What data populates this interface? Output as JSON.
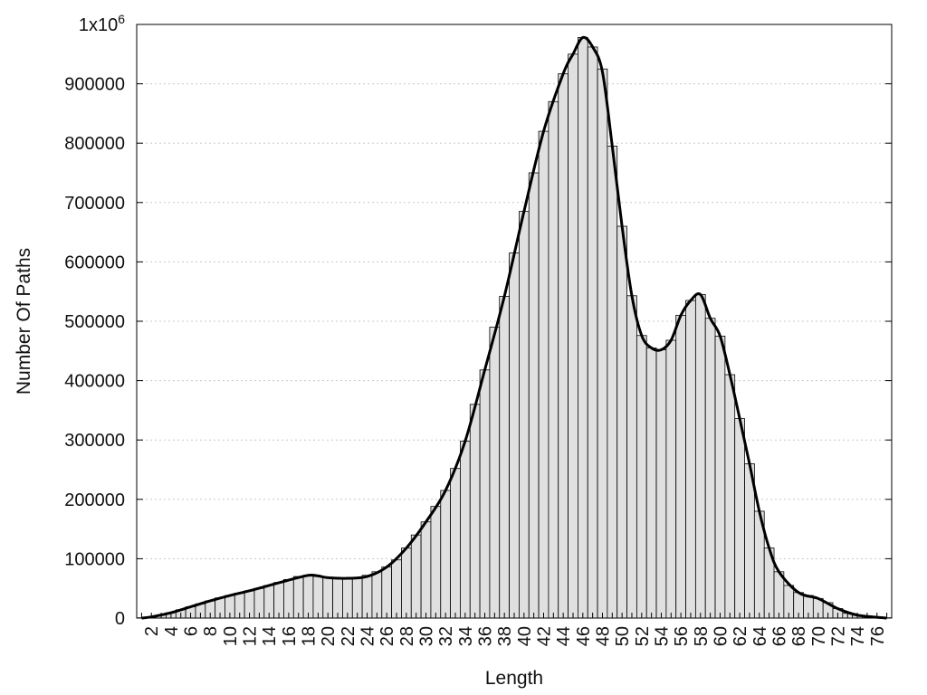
{
  "chart_data": {
    "type": "bar",
    "title": "",
    "xlabel": "Length",
    "ylabel": "Number Of Paths",
    "x": [
      1,
      2,
      3,
      4,
      5,
      6,
      7,
      8,
      9,
      10,
      11,
      12,
      13,
      14,
      15,
      16,
      17,
      18,
      19,
      20,
      21,
      22,
      23,
      24,
      25,
      26,
      27,
      28,
      29,
      30,
      31,
      32,
      33,
      34,
      35,
      36,
      37,
      38,
      39,
      40,
      41,
      42,
      43,
      44,
      45,
      46,
      47,
      48,
      49,
      50,
      51,
      52,
      53,
      54,
      55,
      56,
      57,
      58,
      59,
      60,
      61,
      62,
      63,
      64,
      65,
      66,
      67,
      68,
      69,
      70,
      71,
      72,
      73,
      74,
      75,
      76,
      77
    ],
    "values": [
      500,
      2000,
      5000,
      9000,
      14000,
      19000,
      24000,
      29000,
      34000,
      38000,
      42000,
      46000,
      50000,
      55000,
      60000,
      65000,
      70000,
      72000,
      70000,
      68000,
      67000,
      67000,
      68000,
      72000,
      78000,
      86000,
      98000,
      118000,
      140000,
      162000,
      188000,
      215000,
      252000,
      298000,
      360000,
      418000,
      490000,
      542000,
      615000,
      685000,
      750000,
      820000,
      870000,
      917000,
      950000,
      978000,
      962000,
      925000,
      795000,
      660000,
      543000,
      476000,
      455000,
      452000,
      468000,
      510000,
      535000,
      545000,
      505000,
      475000,
      410000,
      336000,
      260000,
      180000,
      118000,
      78000,
      55000,
      43000,
      38000,
      33000,
      26000,
      16000,
      8000,
      5000,
      3000,
      1500,
      500
    ],
    "curve": [
      [
        1,
        0
      ],
      [
        2,
        2000
      ],
      [
        4,
        9000
      ],
      [
        6,
        19000
      ],
      [
        8,
        29000
      ],
      [
        10,
        38000
      ],
      [
        12,
        46000
      ],
      [
        14,
        55000
      ],
      [
        16,
        64000
      ],
      [
        18,
        72000
      ],
      [
        19,
        71000
      ],
      [
        20,
        68000
      ],
      [
        22,
        67000
      ],
      [
        24,
        70000
      ],
      [
        26,
        86000
      ],
      [
        28,
        118000
      ],
      [
        30,
        162000
      ],
      [
        32,
        215000
      ],
      [
        34,
        298000
      ],
      [
        36,
        418000
      ],
      [
        38,
        542000
      ],
      [
        40,
        685000
      ],
      [
        42,
        820000
      ],
      [
        44,
        917000
      ],
      [
        45,
        950000
      ],
      [
        46,
        978000
      ],
      [
        47,
        962000
      ],
      [
        48,
        920000
      ],
      [
        49,
        795000
      ],
      [
        50,
        660000
      ],
      [
        51,
        543000
      ],
      [
        52,
        476000
      ],
      [
        53,
        455000
      ],
      [
        54,
        452000
      ],
      [
        55,
        468000
      ],
      [
        56,
        510000
      ],
      [
        57,
        535000
      ],
      [
        58,
        545000
      ],
      [
        59,
        505000
      ],
      [
        60,
        475000
      ],
      [
        61,
        410000
      ],
      [
        62,
        336000
      ],
      [
        63,
        260000
      ],
      [
        64,
        180000
      ],
      [
        65,
        118000
      ],
      [
        66,
        78000
      ],
      [
        68,
        43000
      ],
      [
        70,
        33000
      ],
      [
        72,
        16000
      ],
      [
        74,
        5000
      ],
      [
        77,
        0
      ]
    ],
    "xtick_labels": [
      "2",
      "4",
      "6",
      "8",
      "10",
      "12",
      "14",
      "16",
      "18",
      "20",
      "22",
      "24",
      "26",
      "28",
      "30",
      "32",
      "34",
      "36",
      "38",
      "40",
      "42",
      "44",
      "46",
      "48",
      "50",
      "52",
      "54",
      "56",
      "58",
      "60",
      "62",
      "64",
      "66",
      "68",
      "70",
      "72",
      "74",
      "76"
    ],
    "xlim": [
      0.5,
      77.5
    ],
    "ylim": [
      0,
      1000000
    ],
    "ytick_labels": [
      "0",
      "100000",
      "200000",
      "300000",
      "400000",
      "500000",
      "600000",
      "700000",
      "800000",
      "900000"
    ],
    "ytick_values": [
      0,
      100000,
      200000,
      300000,
      400000,
      500000,
      600000,
      700000,
      800000,
      900000
    ],
    "ytop_label": {
      "base": "1x10",
      "exp": "6",
      "value": 1000000
    },
    "grid": true,
    "bar_fill": "#e0e0e0",
    "bar_stroke": "#000000",
    "curve_color": "#000000"
  }
}
